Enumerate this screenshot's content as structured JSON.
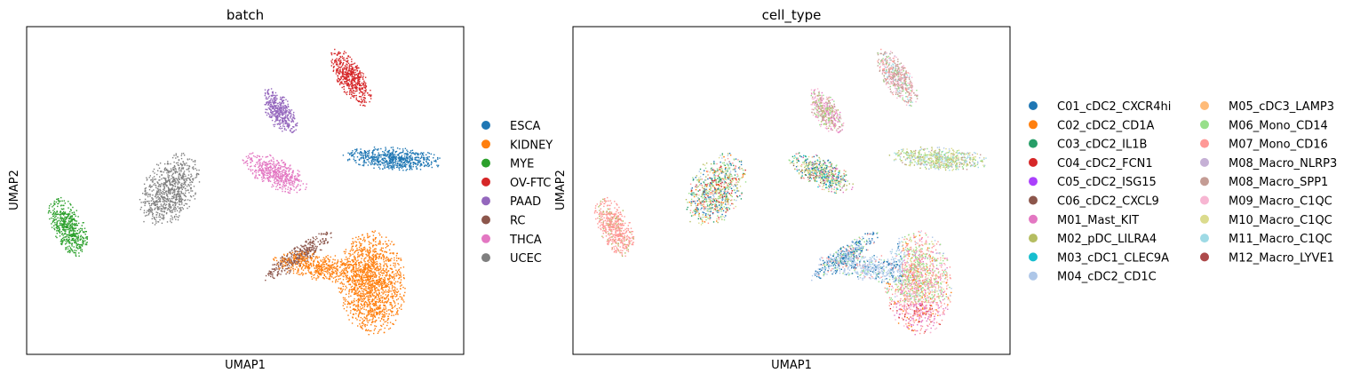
{
  "chart_data": [
    {
      "type": "scatter",
      "title": "batch",
      "xlabel": "UMAP1",
      "ylabel": "UMAP2",
      "ticks": "none",
      "grid": false,
      "legend_position": "right",
      "legend": [
        {
          "label": "ESCA",
          "color": "#1f77b4"
        },
        {
          "label": "KIDNEY",
          "color": "#ff7f0e"
        },
        {
          "label": "MYE",
          "color": "#2ca02c"
        },
        {
          "label": "OV-FTC",
          "color": "#d62728"
        },
        {
          "label": "PAAD",
          "color": "#9467bd"
        },
        {
          "label": "RC",
          "color": "#8c564b"
        },
        {
          "label": "THCA",
          "color": "#e377c2"
        },
        {
          "label": "UCEC",
          "color": "#7f7f7f"
        }
      ]
    },
    {
      "type": "scatter",
      "title": "cell_type",
      "xlabel": "UMAP1",
      "ylabel": "UMAP2",
      "ticks": "none",
      "grid": false,
      "legend_position": "right",
      "legend_columns": 2,
      "legend": [
        {
          "label": "C01_cDC2_CXCR4hi",
          "color": "#1f77b4"
        },
        {
          "label": "C02_cDC2_CD1A",
          "color": "#ff7f0e"
        },
        {
          "label": "C03_cDC2_IL1B",
          "color": "#279e68"
        },
        {
          "label": "C04_cDC2_FCN1",
          "color": "#d62728"
        },
        {
          "label": "C05_cDC2_ISG15",
          "color": "#aa40fc"
        },
        {
          "label": "C06_cDC2_CXCL9",
          "color": "#8c564b"
        },
        {
          "label": "M01_Mast_KIT",
          "color": "#e377c2"
        },
        {
          "label": "M02_pDC_LILRA4",
          "color": "#b5bd61"
        },
        {
          "label": "M03_cDC1_CLEC9A",
          "color": "#17becf"
        },
        {
          "label": "M04_cDC2_CD1C",
          "color": "#aec7e8"
        },
        {
          "label": "M05_cDC3_LAMP3",
          "color": "#ffbb78"
        },
        {
          "label": "M06_Mono_CD14",
          "color": "#98df8a"
        },
        {
          "label": "M07_Mono_CD16",
          "color": "#ff9896"
        },
        {
          "label": "M08_Macro_NLRP3",
          "color": "#c5b0d5"
        },
        {
          "label": "M08_Macro_SPP1",
          "color": "#c49c94"
        },
        {
          "label": "M09_Macro_C1QC",
          "color": "#f7b6d2"
        },
        {
          "label": "M10_Macro_C1QC",
          "color": "#dbdb8d"
        },
        {
          "label": "M11_Macro_C1QC",
          "color": "#9edae5"
        },
        {
          "label": "M12_Macro_LYVE1",
          "color": "#ad494a"
        }
      ]
    }
  ]
}
